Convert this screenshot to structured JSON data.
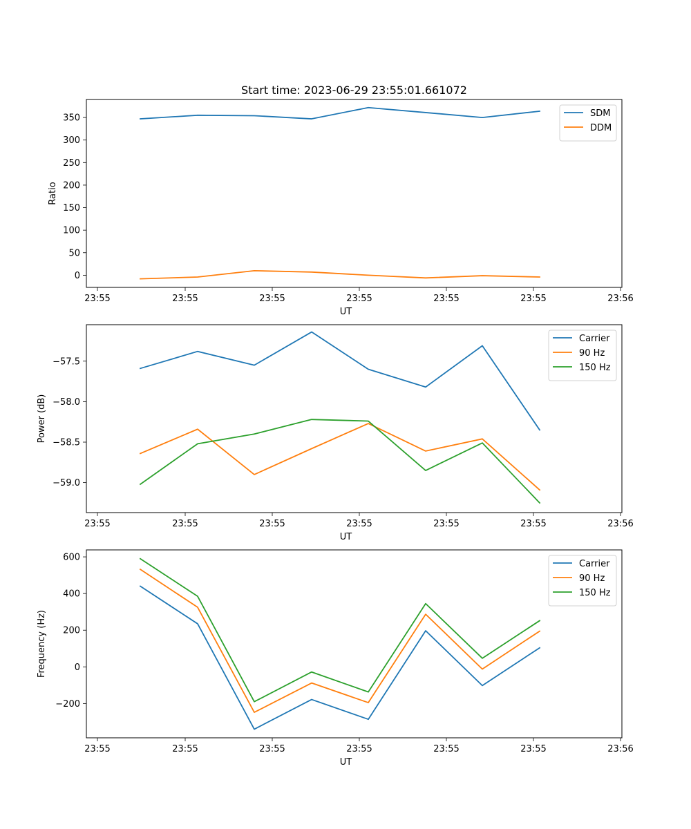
{
  "chart_data": [
    {
      "type": "line",
      "title": "Start time: 2023-06-29 23:55:01.661072",
      "xlabel": "UT",
      "ylabel": "Ratio",
      "x_tick_labels": [
        "23:55",
        "23:55",
        "23:55",
        "23:55",
        "23:55",
        "23:55",
        "23:56"
      ],
      "y_ticks": [
        0,
        50,
        100,
        150,
        200,
        250,
        300,
        350
      ],
      "ylim": [
        -27,
        390
      ],
      "legend_position": "top-right",
      "grid": false,
      "series": [
        {
          "name": "SDM",
          "color": "#1f77b4",
          "values": [
            347,
            355,
            354,
            347,
            372,
            361,
            350,
            364
          ]
        },
        {
          "name": "DDM",
          "color": "#ff7f0e",
          "values": [
            -8,
            -4,
            10,
            7,
            0,
            -6,
            -1,
            -4
          ]
        }
      ]
    },
    {
      "type": "line",
      "xlabel": "UT",
      "ylabel": "Power (dB)",
      "x_tick_labels": [
        "23:55",
        "23:55",
        "23:55",
        "23:55",
        "23:55",
        "23:55",
        "23:56"
      ],
      "y_ticks": [
        -57.5,
        -58.0,
        -58.5,
        -59.0
      ],
      "y_tick_labels": [
        "−57.5",
        "−58.0",
        "−58.5",
        "−59.0"
      ],
      "ylim": [
        -59.37,
        -57.05
      ],
      "legend_position": "top-right",
      "grid": false,
      "series": [
        {
          "name": "Carrier",
          "color": "#1f77b4",
          "values": [
            -57.59,
            -57.38,
            -57.55,
            -57.14,
            -57.6,
            -57.82,
            -57.31,
            -58.35
          ]
        },
        {
          "name": "90 Hz",
          "color": "#ff7f0e",
          "values": [
            -58.64,
            -58.34,
            -58.9,
            -58.58,
            -58.27,
            -58.61,
            -58.46,
            -59.09
          ]
        },
        {
          "name": "150 Hz",
          "color": "#2ca02c",
          "values": [
            -59.02,
            -58.52,
            -58.4,
            -58.22,
            -58.24,
            -58.85,
            -58.51,
            -59.25
          ]
        }
      ]
    },
    {
      "type": "line",
      "xlabel": "UT",
      "ylabel": "Frequency (Hz)",
      "x_tick_labels": [
        "23:55",
        "23:55",
        "23:55",
        "23:55",
        "23:55",
        "23:55",
        "23:56"
      ],
      "y_ticks": [
        600,
        400,
        200,
        0,
        -200
      ],
      "y_tick_labels": [
        "600",
        "400",
        "200",
        "0",
        "−200"
      ],
      "ylim": [
        -387,
        638
      ],
      "legend_position": "top-right",
      "grid": false,
      "series": [
        {
          "name": "Carrier",
          "color": "#1f77b4",
          "values": [
            440,
            235,
            -340,
            -178,
            -286,
            197,
            -102,
            104
          ]
        },
        {
          "name": "90 Hz",
          "color": "#ff7f0e",
          "values": [
            532,
            325,
            -248,
            -88,
            -195,
            287,
            -12,
            195
          ]
        },
        {
          "name": "150 Hz",
          "color": "#2ca02c",
          "values": [
            590,
            385,
            -190,
            -28,
            -137,
            345,
            47,
            252
          ]
        }
      ]
    }
  ]
}
